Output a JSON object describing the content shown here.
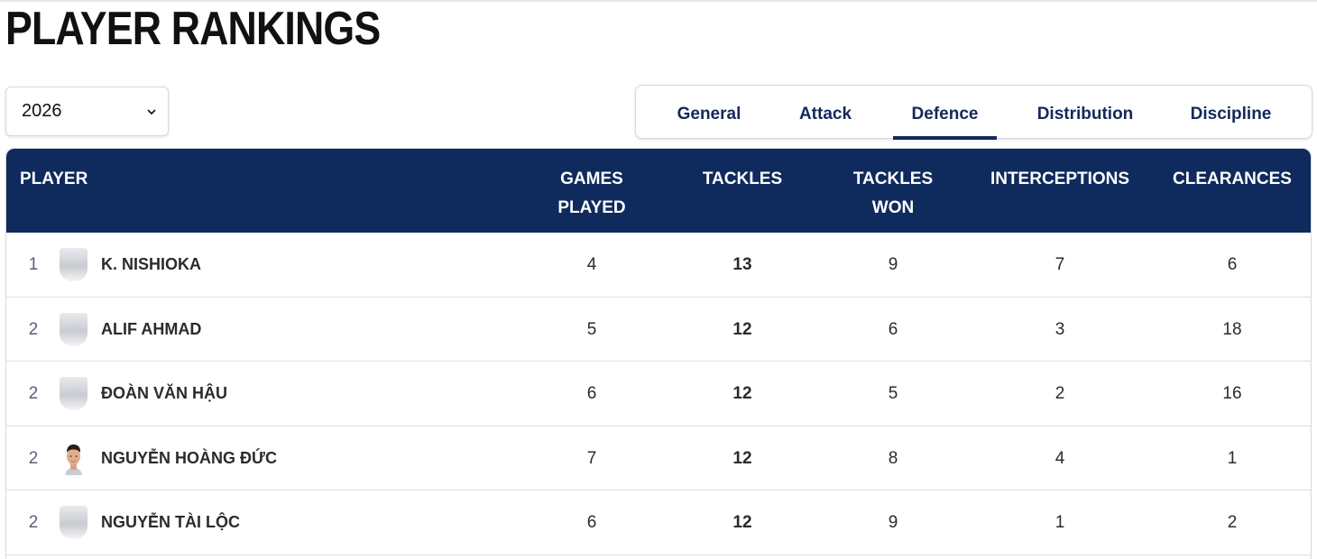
{
  "page": {
    "title": "PLAYER RANKINGS"
  },
  "season_select": {
    "value": "2026"
  },
  "tabs": [
    {
      "label": "General",
      "active": false
    },
    {
      "label": "Attack",
      "active": false
    },
    {
      "label": "Defence",
      "active": true
    },
    {
      "label": "Distribution",
      "active": false
    },
    {
      "label": "Discipline",
      "active": false
    }
  ],
  "table": {
    "headers": {
      "player": "PLAYER",
      "games_played": [
        "GAMES",
        "PLAYED"
      ],
      "tackles": "TACKLES",
      "tackles_won": [
        "TACKLES",
        "WON"
      ],
      "interceptions": "INTERCEPTIONS",
      "clearances": "CLEARANCES"
    },
    "rows": [
      {
        "rank": "1",
        "name": "K. NISHIOKA",
        "avatar": "placeholder-avatar",
        "games_played": "4",
        "tackles": "13",
        "tackles_won": "9",
        "interceptions": "7",
        "clearances": "6"
      },
      {
        "rank": "2",
        "name": "ALIF AHMAD",
        "avatar": "placeholder-avatar",
        "games_played": "5",
        "tackles": "12",
        "tackles_won": "6",
        "interceptions": "3",
        "clearances": "18"
      },
      {
        "rank": "2",
        "name": "ĐOÀN VĂN HẬU",
        "avatar": "placeholder-avatar",
        "games_played": "6",
        "tackles": "12",
        "tackles_won": "5",
        "interceptions": "2",
        "clearances": "16"
      },
      {
        "rank": "2",
        "name": "NGUYỄN HOÀNG ĐỨC",
        "avatar": "player-photo",
        "games_played": "7",
        "tackles": "12",
        "tackles_won": "8",
        "interceptions": "4",
        "clearances": "1"
      },
      {
        "rank": "2",
        "name": "NGUYỄN TÀI LỘC",
        "avatar": "placeholder-avatar",
        "games_played": "6",
        "tackles": "12",
        "tackles_won": "9",
        "interceptions": "1",
        "clearances": "2"
      }
    ]
  },
  "colors": {
    "header_bg": "#0f2a5c",
    "tab_text": "#14285a",
    "divider": "#dcdfe5"
  }
}
